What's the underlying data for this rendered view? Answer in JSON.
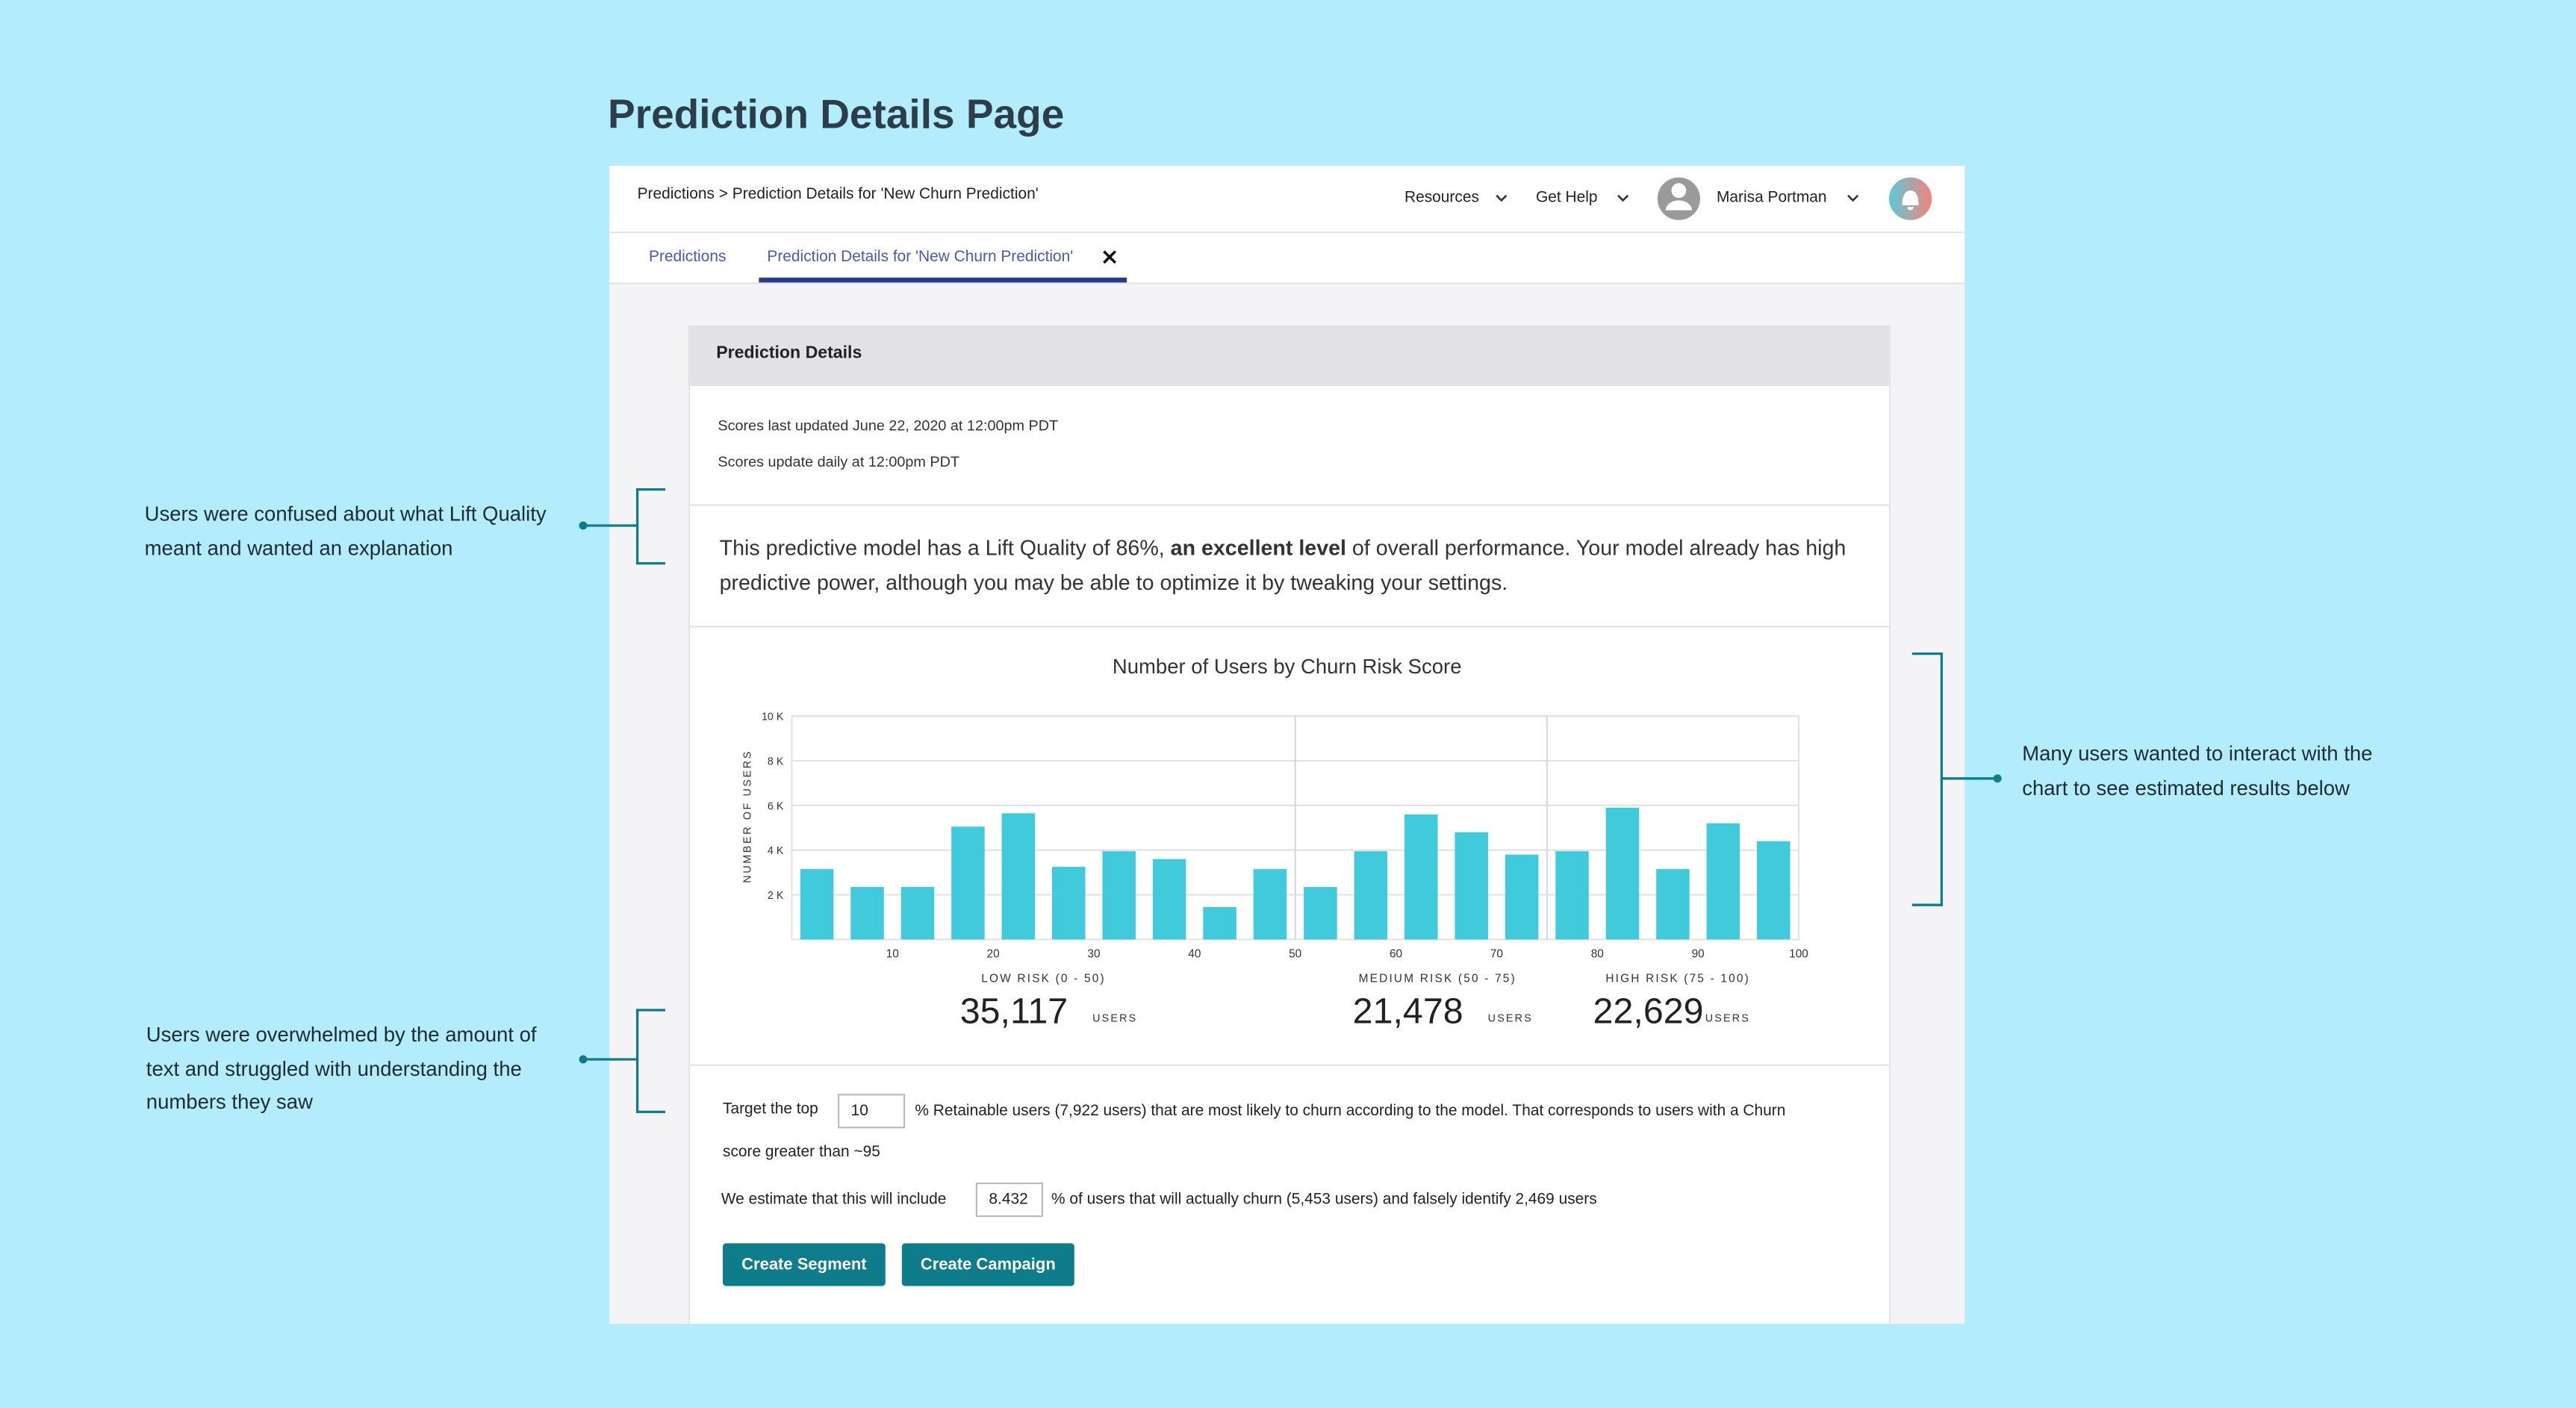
{
  "page_title": "Prediction Details Page",
  "topbar": {
    "breadcrumb": "Predictions > Prediction Details for 'New Churn Prediction'",
    "menu": [
      "Resources",
      "Get Help"
    ],
    "user": "Marisa Portman"
  },
  "tabs": [
    "Predictions",
    "Prediction Details for 'New Churn Prediction'"
  ],
  "card": {
    "header": "Prediction Details",
    "updated": "Scores last updated June 22, 2020 at 12:00pm PDT",
    "schedule": "Scores update daily at 12:00pm PDT",
    "summary": [
      "This predictive model has a Lift Quality of 86%, ",
      "an excellent level",
      " of overall performance. Your model already has high predictive power, although you may be able to optimize it by tweaking your settings."
    ],
    "target": {
      "before": "Target the top",
      "input": "10",
      "after": "% Retainable users (7,922 users) that are most likely to churn according to the model. That corresponds to users with a Churn score greater than ~95"
    },
    "estimate": {
      "before": "We estimate that this will include",
      "input": "8.432",
      "after": "% of users that will actually churn (5,453 users) and falsely identify 2,469 users"
    },
    "buttons": [
      "Create Segment",
      "Create Campaign"
    ]
  },
  "chart_data": {
    "type": "histogram",
    "title": "Number of Users by Churn Risk Score",
    "y_label": "NUMBER OF USERS",
    "color": "#40cadb",
    "bins": [
      0,
      5,
      10,
      15,
      20,
      25,
      30,
      35,
      40,
      45,
      50,
      55,
      60,
      65,
      70,
      75,
      80,
      85,
      90,
      95,
      100
    ],
    "values": [
      3150,
      2350,
      2350,
      5050,
      5650,
      3250,
      3950,
      3600,
      1450,
      3150,
      2350,
      3950,
      5600,
      4800,
      3800,
      3950,
      5900,
      3150,
      5200,
      4400
    ],
    "xlim": [
      0,
      100
    ],
    "xticks": [
      10,
      20,
      30,
      40,
      50,
      60,
      70,
      80,
      90,
      100
    ],
    "ylim": [
      0,
      10000
    ],
    "yticks": [
      {
        "value": 2000,
        "label": "2 K"
      },
      {
        "value": 4000,
        "label": "4 K"
      },
      {
        "value": 6000,
        "label": "6 K"
      },
      {
        "value": 8000,
        "label": "8 K"
      },
      {
        "value": 10000,
        "label": "10 K"
      }
    ],
    "grid": true,
    "dividers": [
      50,
      75
    ],
    "segments": [
      {
        "label": "LOW RISK (0 - 50)",
        "count": "35,117",
        "unit": "USERS"
      },
      {
        "label": "MEDIUM RISK (50 - 75)",
        "count": "21,478",
        "unit": "USERS"
      },
      {
        "label": "HIGH RISK (75 - 100)",
        "count": "22,629",
        "unit": "USERS"
      }
    ]
  },
  "annotations": [
    "Users were confused about what Lift Quality meant and wanted an explanation",
    "Users were overwhelmed by the amount of text and struggled with understanding the numbers they saw",
    "Many users wanted to interact with the chart to see estimated results below"
  ]
}
